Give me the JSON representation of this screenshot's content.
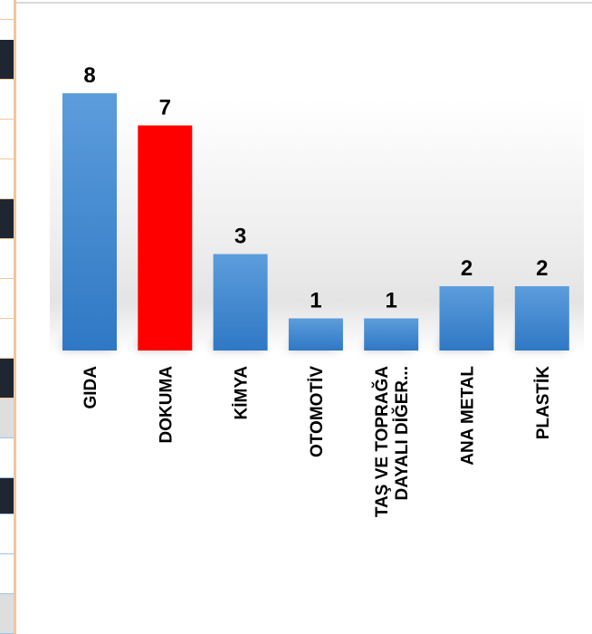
{
  "chart_data": {
    "type": "bar",
    "title": "",
    "xlabel": "",
    "ylabel": "",
    "ylim": [
      0,
      8
    ],
    "grid": false,
    "legend": "none",
    "categories": [
      [
        "GIDA"
      ],
      [
        "DOKUMA"
      ],
      [
        "KİMYA"
      ],
      [
        "OTOMOTİV"
      ],
      [
        "TAŞ VE TOPRAĞA",
        "DAYALI DİĞER..."
      ],
      [
        "ANA METAL"
      ],
      [
        "PLASTİK"
      ]
    ],
    "values": [
      8,
      7,
      3,
      1,
      1,
      2,
      2
    ],
    "highlight_index": 1,
    "colors": {
      "bar": "#3e86d0",
      "bar_light": "#5c9ddc",
      "bar_dark": "#2f78c4",
      "highlight": "#ff0000"
    }
  }
}
